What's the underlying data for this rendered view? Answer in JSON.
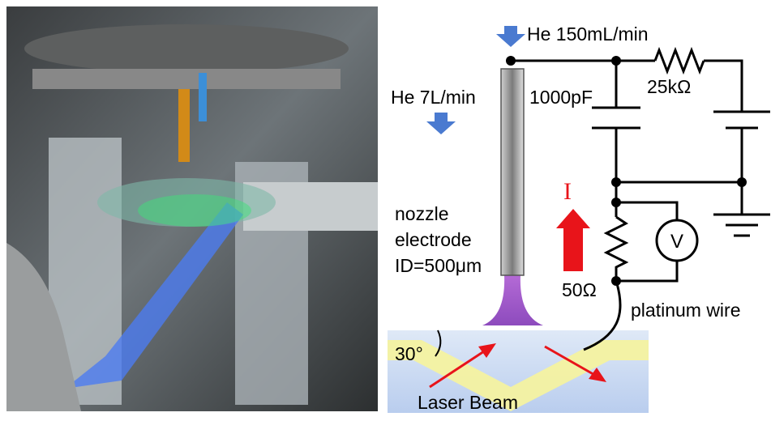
{
  "labels": {
    "he_flow_nozzle": "He 150mL/min",
    "he_flow_chamber": "He 7L/min",
    "capacitor": "1000pF",
    "resistor_high": "25kΩ",
    "current": "I",
    "voltmeter": "V",
    "resistor_low": "50Ω",
    "nozzle_line1": "nozzle",
    "nozzle_line2": "electrode",
    "nozzle_line3": "ID=500μm",
    "wire": "platinum wire",
    "angle": "30°",
    "beam": "Laser Beam"
  }
}
